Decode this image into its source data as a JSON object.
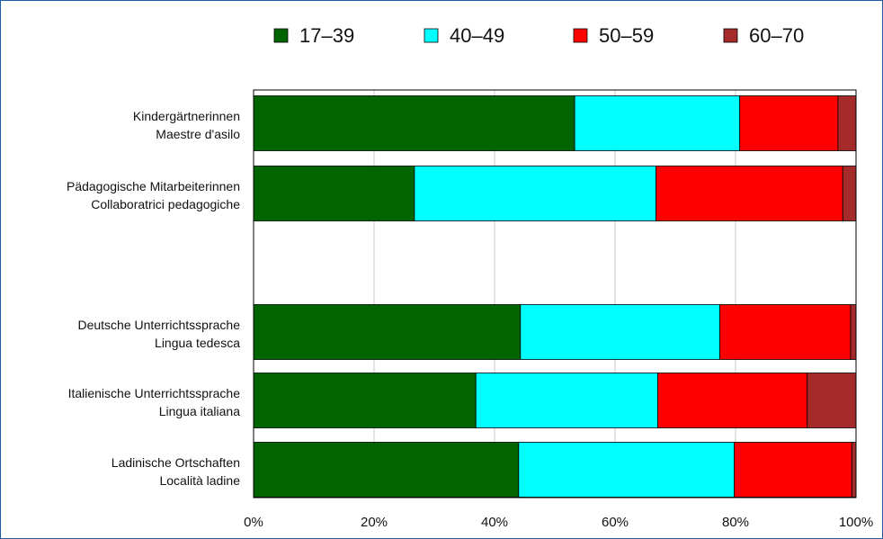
{
  "chart_data": {
    "type": "bar",
    "orientation": "horizontal",
    "stacked": "percent",
    "categories": [
      [
        "Kindergärtnerinnen",
        "Maestre d'asilo"
      ],
      [
        "Pädagogische Mitarbeiterinnen",
        "Collaboratrici pedagogiche"
      ],
      [
        "",
        ""
      ],
      [
        "Deutsche Unterrichtssprache",
        "Lingua tedesca"
      ],
      [
        "Italienische Unterrichtssprache",
        "Lingua italiana"
      ],
      [
        "Ladinische Ortschaften",
        "Località ladine"
      ]
    ],
    "series": [
      {
        "name": "17–39",
        "color": "#006400",
        "values": [
          53.3,
          26.7,
          null,
          44.3,
          36.9,
          44.0
        ]
      },
      {
        "name": "40–49",
        "color": "#00ffff",
        "values": [
          27.4,
          40.1,
          null,
          33.1,
          30.2,
          35.8
        ]
      },
      {
        "name": "50–59",
        "color": "#ff0000",
        "values": [
          16.3,
          31.0,
          null,
          21.7,
          24.8,
          19.5
        ]
      },
      {
        "name": "60–70",
        "color": "#a52a2a",
        "values": [
          3.0,
          2.2,
          null,
          0.9,
          8.1,
          0.7
        ]
      }
    ],
    "xlim": [
      0,
      100
    ],
    "xticks": [
      "0%",
      "20%",
      "40%",
      "60%",
      "80%",
      "100%"
    ],
    "grid": true,
    "legend_position": "top"
  }
}
